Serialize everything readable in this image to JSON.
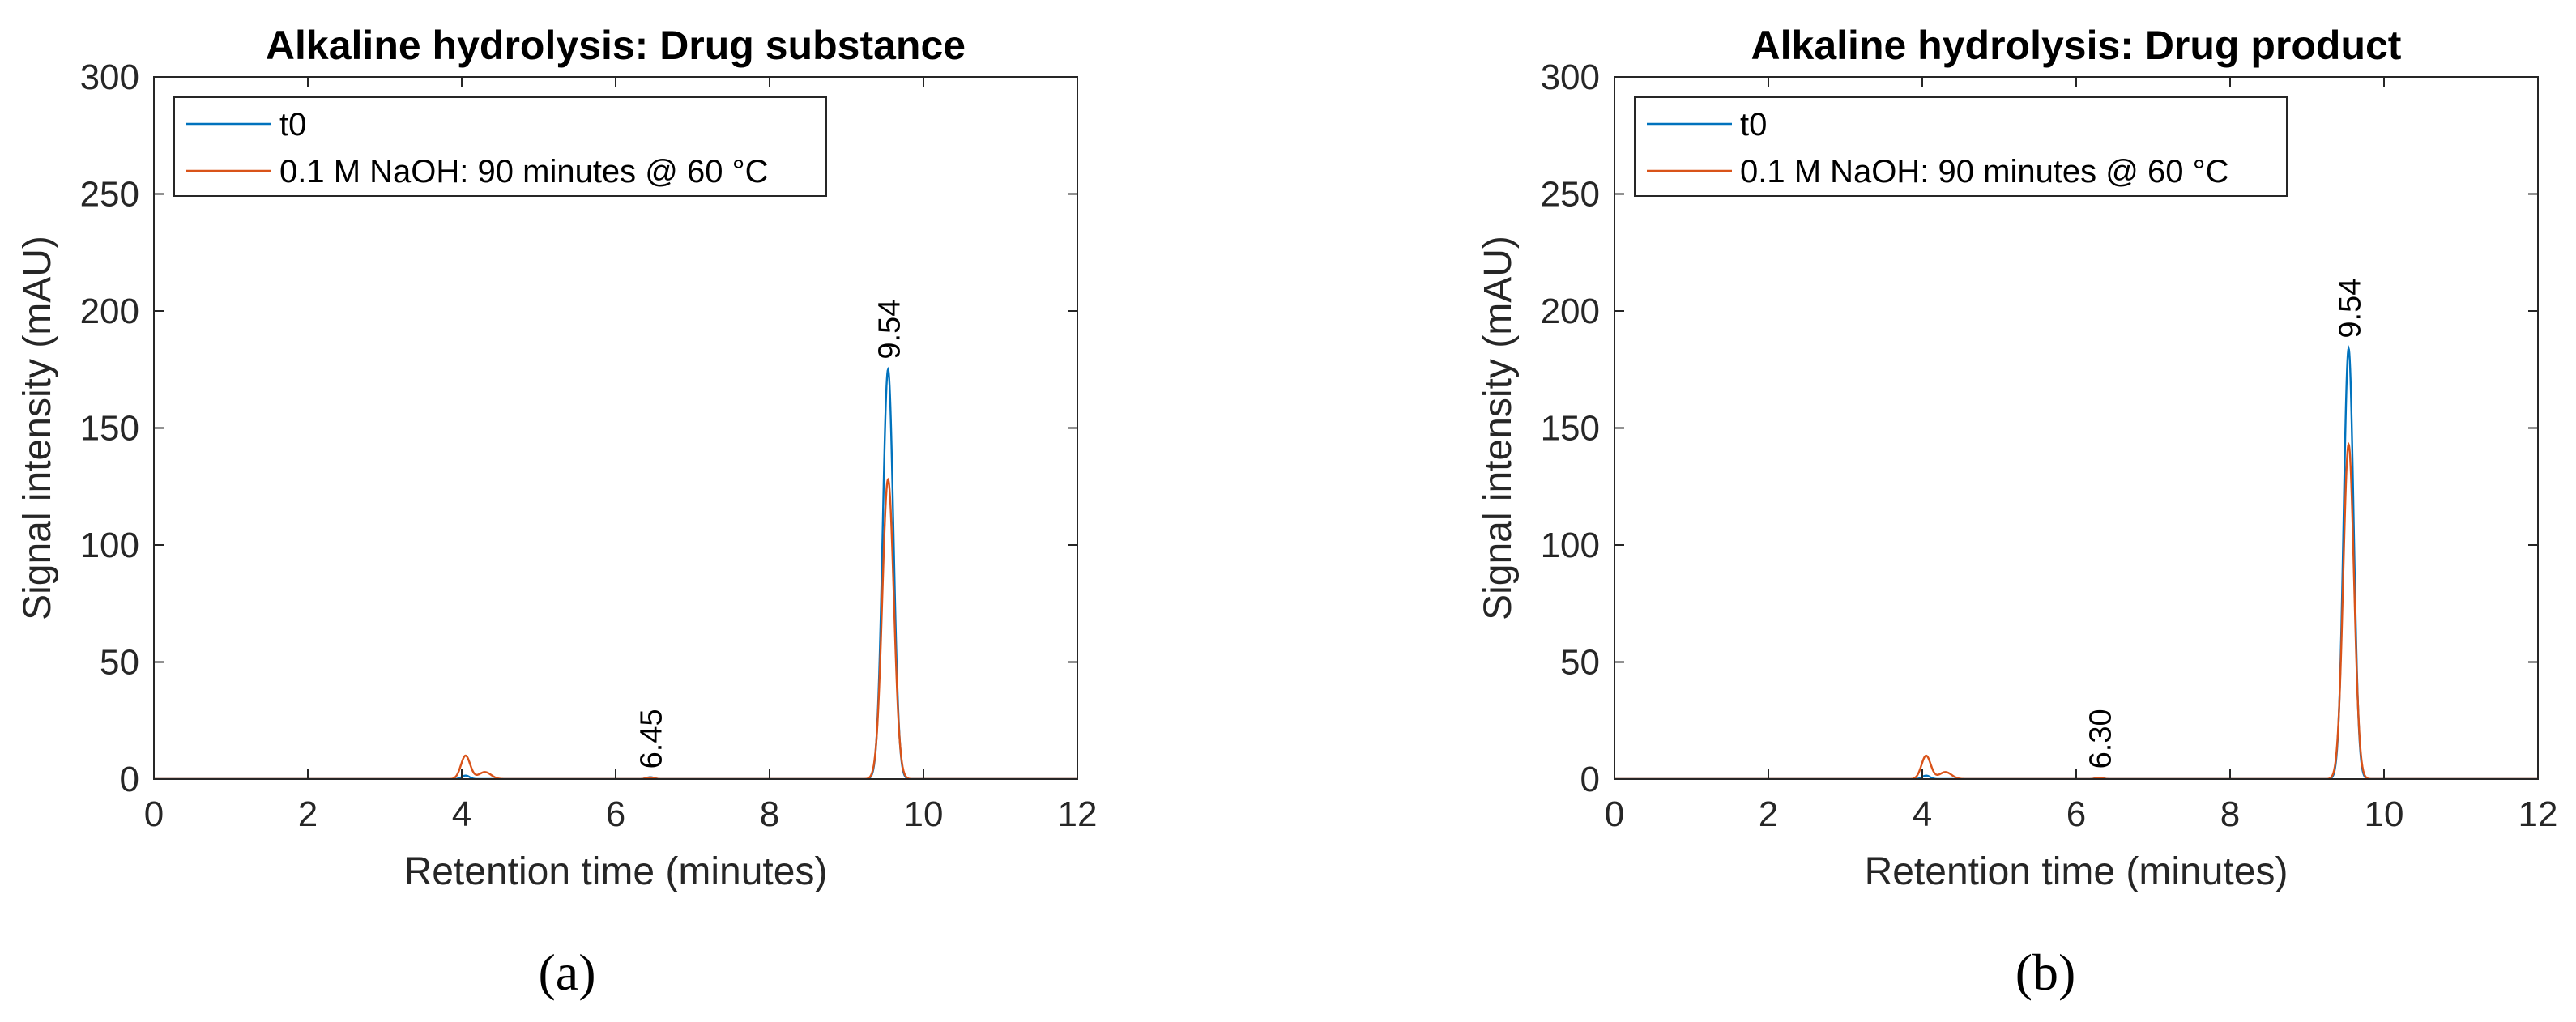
{
  "chart_data": [
    {
      "panel_label": "(a)",
      "type": "line",
      "title": "Alkaline hydrolysis: Drug substance",
      "xlabel": "Retention time (minutes)",
      "ylabel": "Signal intensity (mAU)",
      "xlim": [
        0,
        12
      ],
      "ylim": [
        0,
        300
      ],
      "xticks": [
        0,
        2,
        4,
        6,
        8,
        10,
        12
      ],
      "yticks": [
        0,
        50,
        100,
        150,
        200,
        250,
        300
      ],
      "grid": false,
      "legend_position": "top-left",
      "series": [
        {
          "name": "t0",
          "color": "#0072BD",
          "peaks": [
            {
              "rt": 4.05,
              "height": 1.5,
              "width": 0.05
            },
            {
              "rt": 6.45,
              "height": 0.8,
              "width": 0.05
            },
            {
              "rt": 9.54,
              "height": 175,
              "width": 0.07
            }
          ]
        },
        {
          "name": "0.1 M NaOH: 90 minutes @ 60 °C",
          "color": "#D95319",
          "peaks": [
            {
              "rt": 4.05,
              "height": 10,
              "width": 0.06
            },
            {
              "rt": 4.3,
              "height": 3,
              "width": 0.08
            },
            {
              "rt": 6.45,
              "height": 0.7,
              "width": 0.05
            },
            {
              "rt": 9.54,
              "height": 128,
              "width": 0.075
            }
          ]
        }
      ],
      "annotations": [
        {
          "text": "6.45",
          "x": 6.45,
          "y": 3
        },
        {
          "text": "9.54",
          "x": 9.54,
          "y": 178
        }
      ]
    },
    {
      "panel_label": "(b)",
      "type": "line",
      "title": "Alkaline hydrolysis: Drug product",
      "xlabel": "Retention time (minutes)",
      "ylabel": "Signal intensity (mAU)",
      "xlim": [
        0,
        12
      ],
      "ylim": [
        0,
        300
      ],
      "xticks": [
        0,
        2,
        4,
        6,
        8,
        10,
        12
      ],
      "yticks": [
        0,
        50,
        100,
        150,
        200,
        250,
        300
      ],
      "grid": false,
      "legend_position": "top-left",
      "series": [
        {
          "name": "t0",
          "color": "#0072BD",
          "peaks": [
            {
              "rt": 4.05,
              "height": 1.5,
              "width": 0.05
            },
            {
              "rt": 6.3,
              "height": 0.6,
              "width": 0.05
            },
            {
              "rt": 9.54,
              "height": 184,
              "width": 0.065
            }
          ]
        },
        {
          "name": "0.1 M NaOH: 90 minutes @ 60 °C",
          "color": "#D95319",
          "peaks": [
            {
              "rt": 4.05,
              "height": 10,
              "width": 0.06
            },
            {
              "rt": 4.3,
              "height": 3,
              "width": 0.08
            },
            {
              "rt": 6.3,
              "height": 0.5,
              "width": 0.05
            },
            {
              "rt": 9.54,
              "height": 143,
              "width": 0.07
            }
          ]
        }
      ],
      "annotations": [
        {
          "text": "6.30",
          "x": 6.3,
          "y": 3
        },
        {
          "text": "9.54",
          "x": 9.54,
          "y": 187
        }
      ]
    }
  ]
}
